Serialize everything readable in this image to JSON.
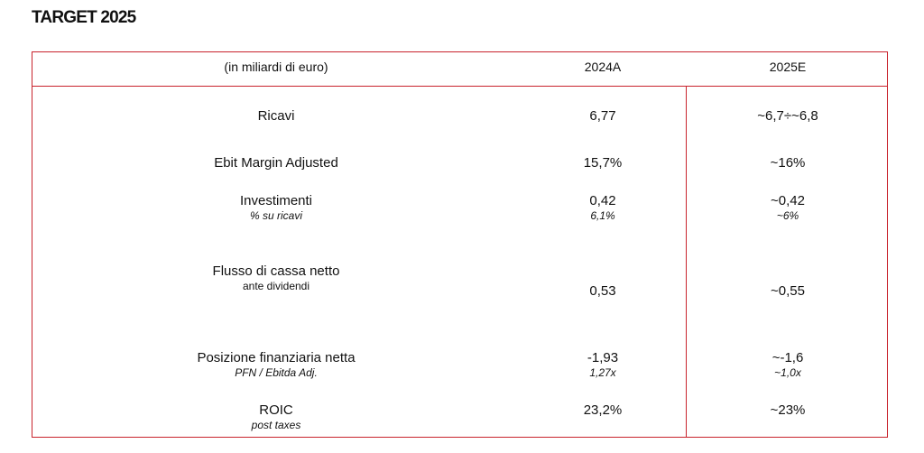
{
  "title": "TARGET 2025",
  "table": {
    "unit_header": "(in miliardi di euro)",
    "col_2024": "2024A",
    "col_2025": "2025E",
    "rows": {
      "ricavi": {
        "label": "Ricavi",
        "v2024": "6,77",
        "v2025": "~6,7÷~6,8"
      },
      "ebit": {
        "label": "Ebit Margin Adjusted",
        "v2024": "15,7%",
        "v2025": "~16%"
      },
      "investimenti": {
        "label": "Investimenti",
        "sub": "% su ricavi",
        "v2024": "0,42",
        "v2024_sub": "6,1%",
        "v2025": "~0,42",
        "v2025_sub": "~6%"
      },
      "flusso": {
        "label": "Flusso di cassa netto",
        "sub": "ante dividendi",
        "v2024": "0,53",
        "v2025": "~0,55"
      },
      "pfn": {
        "label": "Posizione finanziaria netta",
        "sub": "PFN / Ebitda Adj.",
        "v2024": "-1,93",
        "v2024_sub": "1,27x",
        "v2025": "~-1,6",
        "v2025_sub": "~1,0x"
      },
      "roic": {
        "label": "ROIC",
        "sub": "post taxes",
        "v2024": "23,2%",
        "v2025": "~23%"
      }
    },
    "colors": {
      "border": "#c8232c",
      "text": "#111111"
    }
  }
}
